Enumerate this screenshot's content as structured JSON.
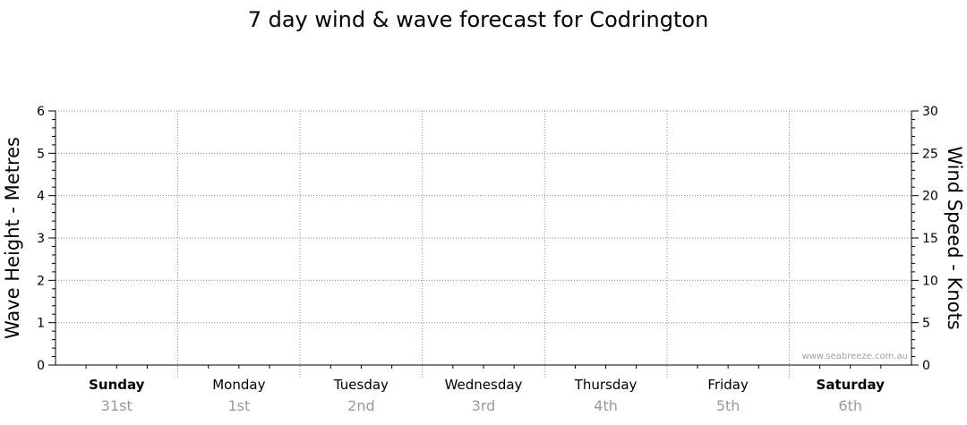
{
  "chart_data": {
    "type": "line",
    "title": "7 day wind & wave forecast for Codrington",
    "ylabel_left": "Wave Height - Metres",
    "ylabel_right": "Wind Speed - Knots",
    "ylim_left": [
      0,
      6
    ],
    "ylim_right": [
      0,
      30
    ],
    "left_ticks": [
      "0",
      "1",
      "2",
      "3",
      "4",
      "5",
      "6"
    ],
    "right_ticks": [
      "0",
      "5",
      "10",
      "15",
      "20",
      "25",
      "30"
    ],
    "grid": true,
    "days": [
      {
        "name": "Sunday",
        "date": "31st",
        "bold": true
      },
      {
        "name": "Monday",
        "date": "1st",
        "bold": false
      },
      {
        "name": "Tuesday",
        "date": "2nd",
        "bold": false
      },
      {
        "name": "Wednesday",
        "date": "3rd",
        "bold": false
      },
      {
        "name": "Thursday",
        "date": "4th",
        "bold": false
      },
      {
        "name": "Friday",
        "date": "5th",
        "bold": false
      },
      {
        "name": "Saturday",
        "date": "6th",
        "bold": true
      }
    ],
    "series": []
  },
  "credit": "www.seabreeze.com.au"
}
